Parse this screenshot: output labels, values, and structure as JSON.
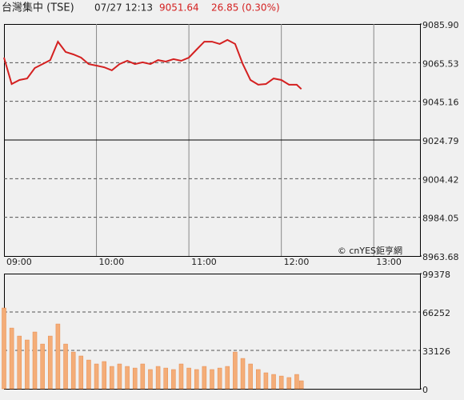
{
  "header": {
    "title": "台灣集中 (TSE)",
    "time": "07/27 12:13",
    "price": "9051.64",
    "change": "26.85 (0.30%)"
  },
  "chart_data": [
    {
      "type": "line",
      "color": "#d42020",
      "watermark": "© cnYES鉅亨網",
      "x": [
        "09:00",
        "09:05",
        "09:10",
        "09:15",
        "09:20",
        "09:25",
        "09:30",
        "09:35",
        "09:40",
        "09:45",
        "09:50",
        "09:55",
        "10:00",
        "10:05",
        "10:10",
        "10:15",
        "10:20",
        "10:25",
        "10:30",
        "10:35",
        "10:40",
        "10:45",
        "10:50",
        "10:55",
        "11:00",
        "11:05",
        "11:10",
        "11:15",
        "11:20",
        "11:25",
        "11:30",
        "11:35",
        "11:40",
        "11:45",
        "11:50",
        "11:55",
        "12:00",
        "12:05",
        "12:10",
        "12:13"
      ],
      "values": [
        9068.2,
        9054.3,
        9056.4,
        9057.2,
        9062.7,
        9064.8,
        9066.9,
        9076.6,
        9071.2,
        9069.9,
        9068.2,
        9064.8,
        9064.0,
        9063.1,
        9061.5,
        9064.8,
        9066.5,
        9064.8,
        9065.7,
        9064.8,
        9066.9,
        9066.1,
        9067.4,
        9066.5,
        9068.2,
        9072.4,
        9076.6,
        9076.6,
        9075.4,
        9077.5,
        9075.4,
        9064.8,
        9056.4,
        9053.9,
        9054.3,
        9057.2,
        9056.4,
        9053.9,
        9053.9,
        9051.64
      ],
      "xlim": [
        "09:00",
        "13:30"
      ],
      "xticks": [
        "09:00",
        "10:00",
        "11:00",
        "12:00",
        "13:00"
      ],
      "ylim": [
        8963.68,
        9085.9
      ],
      "yticks": [
        {
          "value": 9085.9,
          "label": "9085.90"
        },
        9065.53,
        9045.16,
        9024.79,
        9004.42,
        8984.05,
        8963.68
      ]
    },
    {
      "type": "bar",
      "color": "#f4ad78",
      "x": [
        "09:00",
        "09:05",
        "09:10",
        "09:15",
        "09:20",
        "09:25",
        "09:30",
        "09:35",
        "09:40",
        "09:45",
        "09:50",
        "09:55",
        "10:00",
        "10:05",
        "10:10",
        "10:15",
        "10:20",
        "10:25",
        "10:30",
        "10:35",
        "10:40",
        "10:45",
        "10:50",
        "10:55",
        "11:00",
        "11:05",
        "11:10",
        "11:15",
        "11:20",
        "11:25",
        "11:30",
        "11:35",
        "11:40",
        "11:45",
        "11:50",
        "11:55",
        "12:00",
        "12:05",
        "12:10",
        "12:13"
      ],
      "values": [
        69700,
        52400,
        45500,
        42100,
        49000,
        38600,
        45500,
        55900,
        38600,
        31700,
        28300,
        24800,
        21400,
        23500,
        19300,
        21400,
        19300,
        17900,
        21400,
        16600,
        19300,
        17900,
        16600,
        21400,
        17900,
        16600,
        19300,
        16600,
        17900,
        19300,
        31700,
        26200,
        21400,
        16600,
        13800,
        12400,
        11000,
        9700,
        12400,
        6900
      ],
      "xlim": [
        "09:00",
        "13:30"
      ],
      "ylim": [
        0,
        99378
      ],
      "yticks": [
        99378,
        66252,
        33126,
        0
      ]
    }
  ]
}
